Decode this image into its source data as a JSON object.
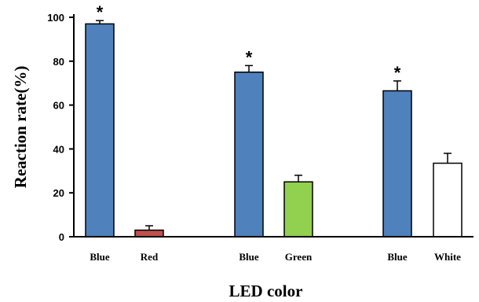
{
  "chart_data": {
    "type": "bar",
    "title": "",
    "xlabel": "LED color",
    "ylabel": "Reaction rate(%)",
    "ylim": [
      0,
      100
    ],
    "yticks": [
      "0",
      "20",
      "40",
      "60",
      "80",
      "100"
    ],
    "grid": false,
    "categories": [
      "Blue",
      "Red",
      "Blue",
      "Green",
      "Blue",
      "White"
    ],
    "values": [
      97,
      3,
      75,
      25,
      66.5,
      33.5
    ],
    "errors": [
      1.5,
      2,
      3,
      3,
      4.5,
      4.5
    ],
    "significance": [
      "*",
      "",
      "*",
      "",
      "*",
      ""
    ],
    "colors": [
      "#4f81bd",
      "#c0504d",
      "#4f81bd",
      "#92d050",
      "#4f81bd",
      "#ffffff"
    ]
  }
}
